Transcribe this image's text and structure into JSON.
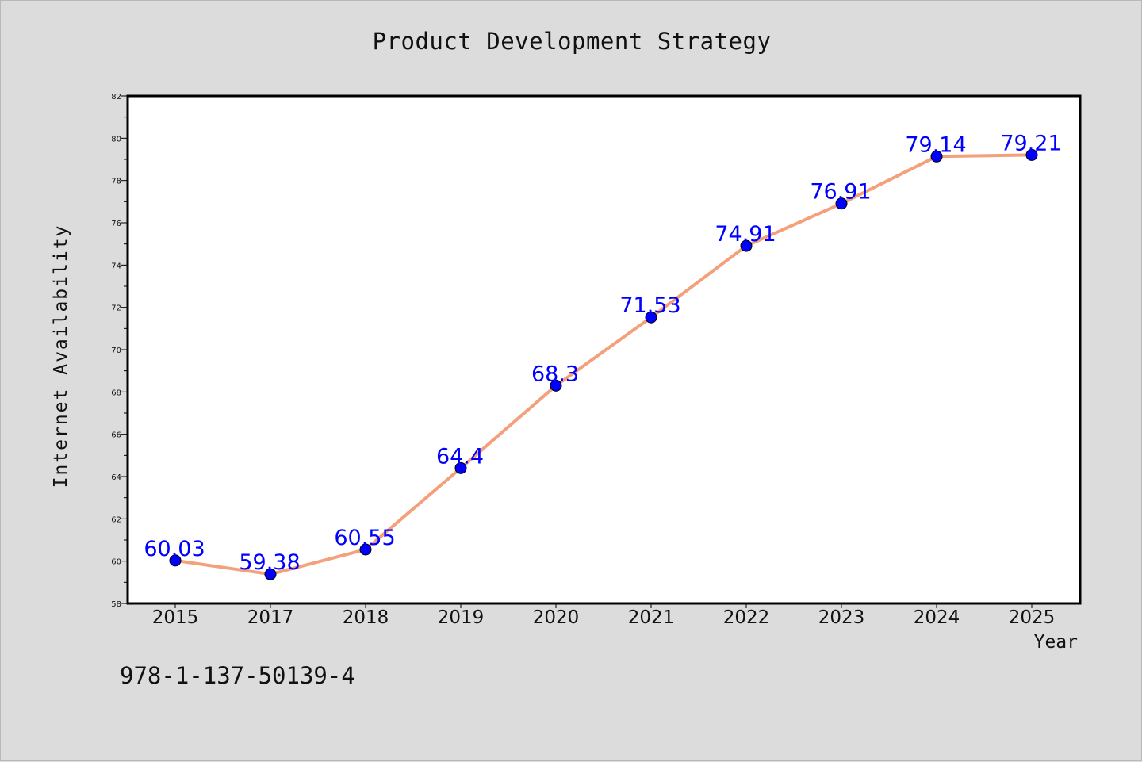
{
  "chart_data": {
    "type": "line",
    "title": "Product Development Strategy",
    "xlabel": "Year",
    "ylabel": "Internet Availability",
    "categories": [
      "2015",
      "2017",
      "2018",
      "2019",
      "2020",
      "2021",
      "2022",
      "2023",
      "2024",
      "2025"
    ],
    "values": [
      60.03,
      59.38,
      60.55,
      64.4,
      68.3,
      71.53,
      74.91,
      76.91,
      79.14,
      79.21
    ],
    "data_labels": [
      "60.03",
      "59.38",
      "60.55",
      "64.4",
      "68.3",
      "71.53",
      "74.91",
      "76.91",
      "79.14",
      "79.21"
    ],
    "ylim": [
      58,
      82
    ],
    "yticks": [
      58,
      60,
      62,
      64,
      66,
      68,
      70,
      72,
      74,
      76,
      78,
      80,
      82
    ],
    "grid": false,
    "line_color": "#f4a07a",
    "marker_color": "#0000ff",
    "label_color": "#0000ff"
  },
  "annotation": "978-1-137-50139-4"
}
